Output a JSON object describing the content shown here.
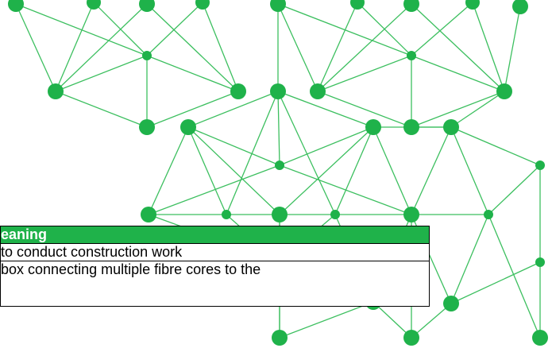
{
  "table": {
    "header": "eaning",
    "rows": [
      "to conduct construction work",
      "box connecting multiple fibre cores to the"
    ]
  }
}
